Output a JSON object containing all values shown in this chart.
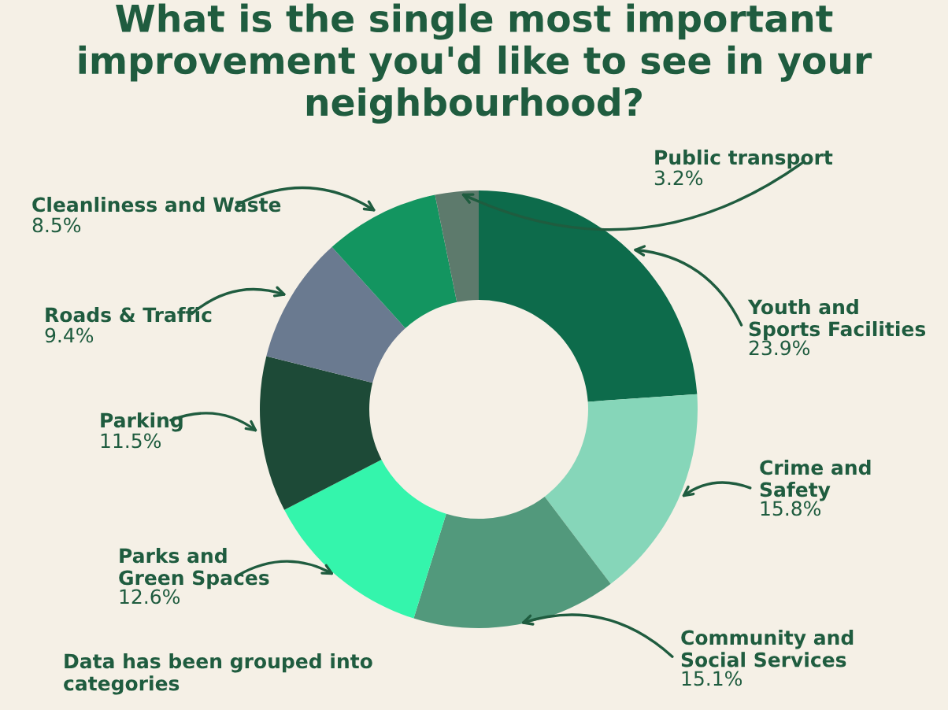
{
  "chart_data": {
    "type": "donut",
    "title": "What is the single most important improvement you'd like to see in your neighbourhood?",
    "categories": [
      "Youth and\nSports Facilities",
      "Crime and\nSafety",
      "Community and\nSocial Services",
      "Parks and\nGreen Spaces",
      "Parking",
      "Roads & Traffic",
      "Cleanliness and Waste",
      "Public transport"
    ],
    "values": [
      23.9,
      15.8,
      15.1,
      12.6,
      11.5,
      9.4,
      8.5,
      3.2
    ],
    "value_labels": [
      "23.9%",
      "15.8%",
      "15.1%",
      "12.6%",
      "11.5%",
      "9.4%",
      "8.5%",
      "3.2%"
    ],
    "colors": [
      "#0d6b4b",
      "#86d6b9",
      "#52997c",
      "#34f5ac",
      "#1d4a37",
      "#6a7a90",
      "#139560",
      "#5d7a6c"
    ],
    "annotations": [
      "Data has been grouped into categories"
    ]
  }
}
